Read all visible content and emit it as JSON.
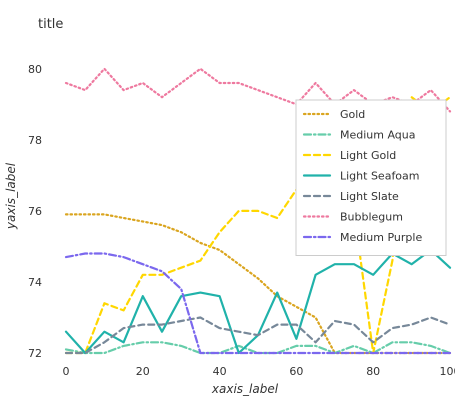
{
  "chart_data": {
    "type": "line",
    "title": "title",
    "xlabel": "xaxis_label",
    "ylabel": "yaxis_label",
    "xlim": [
      0,
      100
    ],
    "ylim": [
      72,
      80.5
    ],
    "x_ticks": [
      0,
      20,
      40,
      60,
      80,
      100
    ],
    "y_ticks": [
      72,
      74,
      76,
      78,
      80
    ],
    "grid": false,
    "legend_position": "right",
    "colors": {
      "Gold": "#DAA520",
      "Medium Aqua": "#66CDAA",
      "Light Gold": "#FFD700",
      "Light Seafoam": "#20B2AA",
      "Light Slate": "#778899",
      "Bubblegum": "#EE799F",
      "Medium Purple": "#7B68EE"
    },
    "series": [
      {
        "name": "Gold",
        "style": "dotted",
        "x": [
          0,
          5,
          10,
          15,
          20,
          25,
          30,
          35,
          40,
          45,
          50,
          55,
          60,
          65,
          70,
          75,
          80,
          85,
          90,
          95,
          100
        ],
        "y": [
          75.9,
          75.9,
          75.9,
          75.8,
          75.7,
          75.6,
          75.4,
          75.1,
          74.9,
          74.5,
          74.1,
          73.6,
          73.3,
          73.0,
          72.0,
          72.0,
          72.0,
          72.0,
          72.0,
          72.0,
          72.0
        ]
      },
      {
        "name": "Medium Aqua",
        "style": "dashdot",
        "x": [
          0,
          5,
          10,
          15,
          20,
          25,
          30,
          35,
          40,
          45,
          50,
          55,
          60,
          65,
          70,
          75,
          80,
          85,
          90,
          95,
          100
        ],
        "y": [
          72.1,
          72.0,
          72.0,
          72.2,
          72.3,
          72.3,
          72.2,
          72.0,
          72.0,
          72.2,
          72.0,
          72.0,
          72.2,
          72.2,
          72.0,
          72.2,
          72.0,
          72.3,
          72.3,
          72.2,
          72.0
        ]
      },
      {
        "name": "Light Gold",
        "style": "dashed",
        "x": [
          0,
          5,
          10,
          15,
          20,
          25,
          30,
          35,
          40,
          45,
          50,
          55,
          60,
          65,
          70,
          75,
          80,
          85,
          90,
          95,
          100
        ],
        "y": [
          72.0,
          72.0,
          73.4,
          73.2,
          74.2,
          74.2,
          74.4,
          74.6,
          75.4,
          76.0,
          76.0,
          75.8,
          76.6,
          76.6,
          76.0,
          76.0,
          72.0,
          74.6,
          79.2,
          78.8,
          79.2
        ]
      },
      {
        "name": "Light Seafoam",
        "style": "solid",
        "x": [
          0,
          5,
          10,
          15,
          20,
          25,
          30,
          35,
          40,
          45,
          50,
          55,
          60,
          65,
          70,
          75,
          80,
          85,
          90,
          95,
          100
        ],
        "y": [
          72.6,
          72.0,
          72.6,
          72.3,
          73.6,
          72.6,
          73.6,
          73.7,
          73.6,
          72.0,
          72.5,
          73.7,
          72.4,
          74.2,
          74.5,
          74.5,
          74.2,
          74.8,
          74.5,
          74.9,
          74.4
        ]
      },
      {
        "name": "Light Slate",
        "style": "dashed",
        "x": [
          0,
          5,
          10,
          15,
          20,
          25,
          30,
          35,
          40,
          45,
          50,
          55,
          60,
          65,
          70,
          75,
          80,
          85,
          90,
          95,
          100
        ],
        "y": [
          72.0,
          72.0,
          72.3,
          72.7,
          72.8,
          72.8,
          72.9,
          73.0,
          72.7,
          72.6,
          72.5,
          72.8,
          72.8,
          72.3,
          72.9,
          72.8,
          72.3,
          72.7,
          72.8,
          73.0,
          72.8
        ]
      },
      {
        "name": "Bubblegum",
        "style": "dotted",
        "x": [
          0,
          5,
          10,
          15,
          20,
          25,
          30,
          35,
          40,
          45,
          50,
          55,
          60,
          65,
          70,
          75,
          80,
          85,
          90,
          95,
          100
        ],
        "y": [
          79.6,
          79.4,
          80.0,
          79.4,
          79.6,
          79.2,
          79.6,
          80.0,
          79.6,
          79.6,
          79.4,
          79.2,
          79.0,
          79.6,
          79.0,
          79.4,
          79.0,
          79.2,
          79.0,
          79.4,
          78.8
        ]
      },
      {
        "name": "Medium Purple",
        "style": "dashdot",
        "x": [
          0,
          5,
          10,
          15,
          20,
          25,
          30,
          35,
          40,
          45,
          50,
          55,
          60,
          65,
          70,
          75,
          80,
          85,
          90,
          95,
          100
        ],
        "y": [
          74.7,
          74.8,
          74.8,
          74.7,
          74.5,
          74.3,
          73.8,
          72.0,
          72.0,
          72.0,
          72.0,
          72.0,
          72.0,
          72.0,
          72.0,
          72.0,
          72.0,
          72.0,
          72.0,
          72.0,
          72.0
        ]
      }
    ]
  }
}
